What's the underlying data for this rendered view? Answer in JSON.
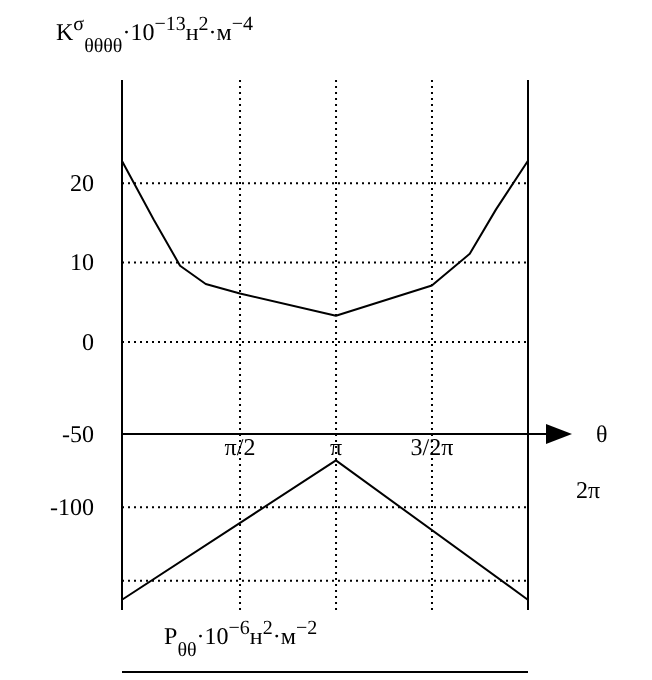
{
  "chart_data": [
    {
      "type": "line",
      "ylabel": "K$^{σ}$$_{θθθθ}$·10$^{−13}$н$^{2}$·м$^{−4}$",
      "xlabel": "θ",
      "x": [
        -0.36,
        0.16,
        0.59,
        1.01,
        1.57,
        3.14,
        4.71,
        5.33,
        5.76,
        6.28
      ],
      "values": [
        22.8,
        15.4,
        9.6,
        7.3,
        6.1,
        3.3,
        7.1,
        11.1,
        16.7,
        22.8
      ],
      "color": "#000000",
      "xlim": [
        -0.36,
        6.283
      ],
      "ylim": [
        -11.6,
        33
      ],
      "xticks": [
        {
          "value": 1.571,
          "label": "π/2"
        },
        {
          "value": 3.142,
          "label": "π"
        },
        {
          "value": 4.712,
          "label": "3/2π"
        }
      ],
      "annotations": [
        "2π"
      ],
      "yticks": [
        0,
        10,
        20
      ],
      "grid": true,
      "marker": "none",
      "line_style": "solid"
    },
    {
      "type": "line",
      "xlabel": "P$_{θθ}$·10$^{−6}$н$^{2}$·м$^{−2}$",
      "x": [
        -0.36,
        3.14,
        6.28
      ],
      "values": [
        -163,
        -68,
        -163
      ],
      "color": "#000000",
      "xlim": [
        -0.36,
        6.283
      ],
      "ylim": [
        -170,
        -50
      ],
      "xticks": [
        {
          "value": 1.571,
          "label": null
        },
        {
          "value": 3.142,
          "label": null
        },
        {
          "value": 4.712,
          "label": null
        }
      ],
      "yticks": [
        -50,
        -100,
        {
          "value": -150,
          "label": null
        }
      ],
      "grid": true,
      "tick_labels": "y",
      "marker": "none",
      "line_style": "solid"
    }
  ]
}
